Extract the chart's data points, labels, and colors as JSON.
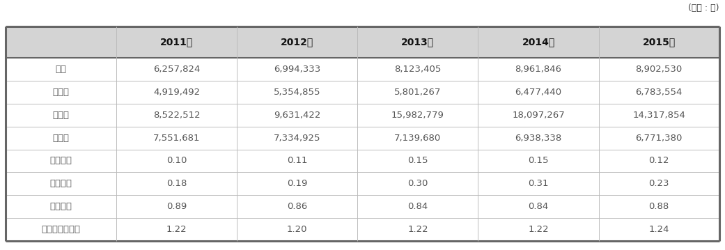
{
  "unit_label": "(단위 : 원)",
  "columns": [
    "",
    "2011년",
    "2012년",
    "2013년",
    "2014년",
    "2015년"
  ],
  "rows": [
    [
      "평균",
      "6,257,824",
      "6,994,333",
      "8,123,405",
      "8,961,846",
      "8,902,530"
    ],
    [
      "최소값",
      "4,919,492",
      "5,354,855",
      "5,801,267",
      "6,477,440",
      "6,783,554"
    ],
    [
      "최대값",
      "8,522,512",
      "9,631,422",
      "15,982,779",
      "18,097,267",
      "14,317,854"
    ],
    [
      "학생수",
      "7,551,681",
      "7,334,925",
      "7,139,680",
      "6,938,338",
      "6,771,380"
    ],
    [
      "지니지수",
      "0.10",
      "0.11",
      "0.15",
      "0.15",
      "0.12"
    ],
    [
      "편차계수",
      "0.18",
      "0.19",
      "0.30",
      "0.31",
      "0.23"
    ],
    [
      "맥룬지수",
      "0.89",
      "0.86",
      "0.84",
      "0.84",
      "0.88"
    ],
    [
      "페어슈테겐지수",
      "1.22",
      "1.20",
      "1.22",
      "1.22",
      "1.24"
    ]
  ],
  "header_bg": "#d4d4d4",
  "data_text_color": "#555555",
  "row_label_color": "#555555",
  "header_text_color": "#111111",
  "border_color_inner": "#bbbbbb",
  "border_color_outer": "#666666",
  "fig_width": 10.41,
  "fig_height": 3.59,
  "col_ratios": [
    0.155,
    0.169,
    0.169,
    0.169,
    0.169,
    0.169
  ]
}
